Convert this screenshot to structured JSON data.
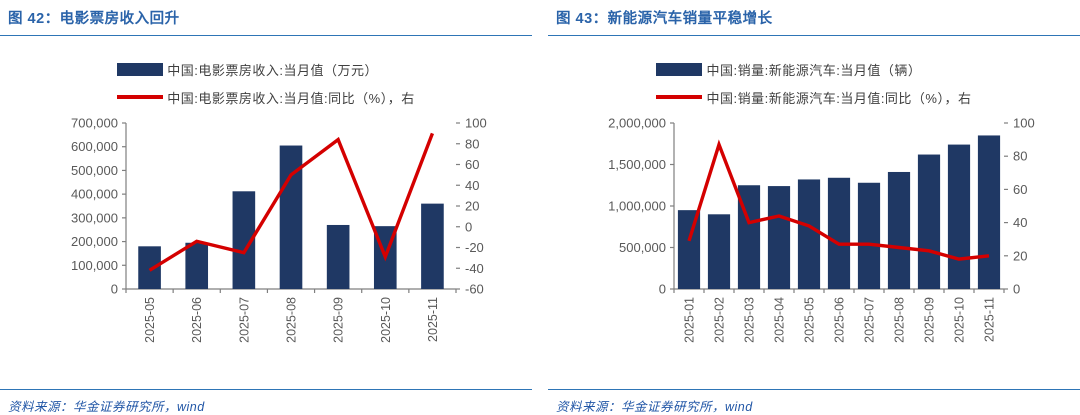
{
  "source_note": "资料来源：华金证券研究所，wind",
  "colors": {
    "bar": "#1F3864",
    "line": "#D40000",
    "title_text": "#2A63A9",
    "rule": "#2E75B6",
    "axis_text": "#595959",
    "axis_line": "#7F7F7F",
    "source_text": "#2156A6",
    "legend_text": "#404040"
  },
  "chart_data": [
    {
      "type": "bar",
      "title": "图 42：电影票房收入回升",
      "categories": [
        "2025-05",
        "2025-06",
        "2025-07",
        "2025-08",
        "2025-09",
        "2025-10",
        "2025-11"
      ],
      "series": [
        {
          "name": "中国:电影票房收入:当月值（万元）",
          "kind": "bar",
          "axis": "left",
          "values": [
            180000,
            195000,
            412000,
            605000,
            270000,
            265000,
            360000
          ]
        },
        {
          "name": "中国:电影票房收入:当月值:同比（%），右",
          "kind": "line",
          "axis": "right",
          "values": [
            -42,
            -14,
            -25,
            50,
            84,
            -29,
            90
          ]
        }
      ],
      "left_axis": {
        "min": 0,
        "max": 700000,
        "step": 100000
      },
      "right_axis": {
        "min": -60,
        "max": 100,
        "step": 20
      },
      "bar_frac": 0.48,
      "grid": false,
      "legend_position": "top"
    },
    {
      "type": "bar",
      "title": "图 43：新能源汽车销量平稳增长",
      "categories": [
        "2025-01",
        "2025-02",
        "2025-03",
        "2025-04",
        "2025-05",
        "2025-06",
        "2025-07",
        "2025-08",
        "2025-09",
        "2025-10",
        "2025-11"
      ],
      "series": [
        {
          "name": "中国:销量:新能源汽车:当月值（辆）",
          "kind": "bar",
          "axis": "left",
          "values": [
            950000,
            900000,
            1250000,
            1240000,
            1320000,
            1340000,
            1280000,
            1410000,
            1620000,
            1740000,
            1850000
          ]
        },
        {
          "name": "中国:销量:新能源汽车:当月值:同比（%），右",
          "kind": "line",
          "axis": "right",
          "values": [
            29,
            87,
            40,
            44,
            38,
            27,
            27,
            25,
            23,
            18,
            20
          ]
        }
      ],
      "left_axis": {
        "min": 0,
        "max": 2000000,
        "step": 500000
      },
      "right_axis": {
        "min": 0,
        "max": 100,
        "step": 20
      },
      "bar_frac": 0.74,
      "grid": false,
      "legend_position": "top"
    }
  ]
}
